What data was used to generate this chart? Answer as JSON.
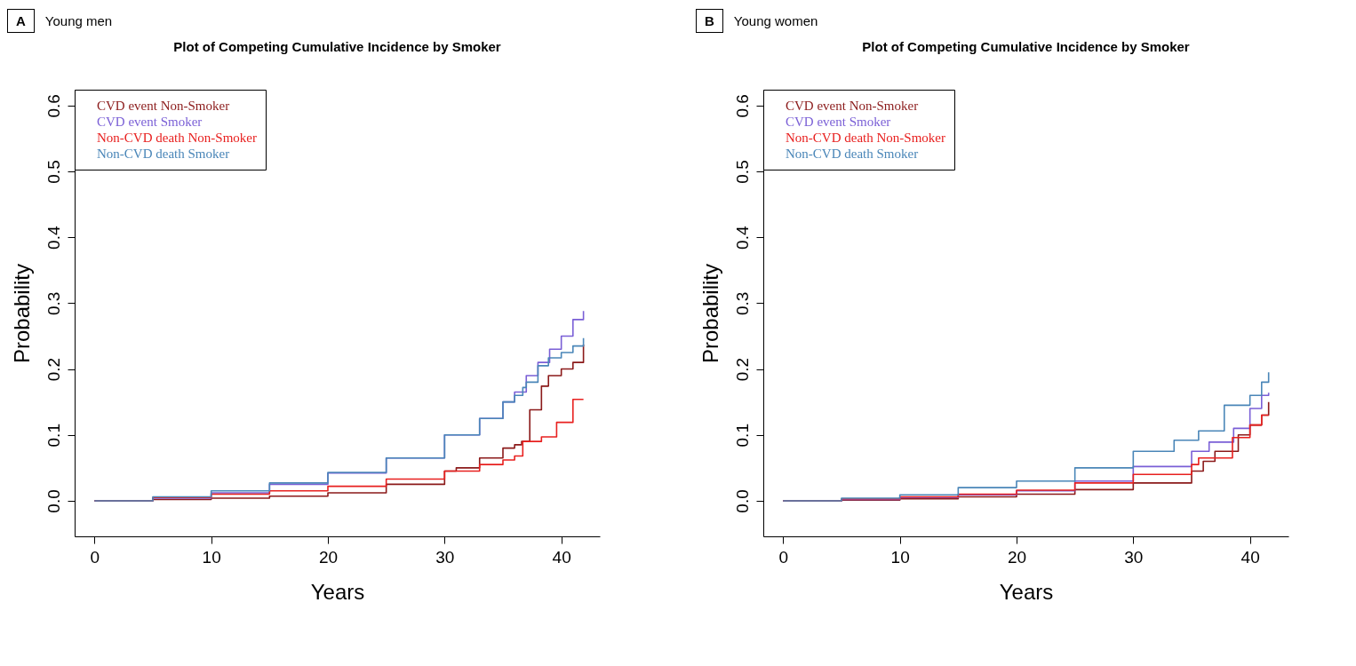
{
  "chart_data": [
    {
      "type": "step",
      "title": "Plot of Competing Cumulative Incidence by Smoker",
      "annotations": [
        "A",
        "Young men"
      ],
      "xlabel": "Years",
      "ylabel": "Probability",
      "xlim": [
        -1.7,
        43.3
      ],
      "ylim": [
        -0.054,
        0.624
      ],
      "xticks": [
        0,
        10,
        20,
        30,
        40
      ],
      "yticks": [
        {
          "value": 0,
          "label": "0.0"
        },
        0.1,
        0.2,
        0.3,
        0.4,
        0.5,
        0.6
      ],
      "grid": false,
      "legend": "top left",
      "series": [
        {
          "name": "CVD event Non-Smoker",
          "color": "#8b1a1a",
          "x": [
            0,
            5,
            10,
            15,
            20,
            25,
            30,
            31,
            33,
            35,
            36,
            36.6,
            37.3,
            38.3,
            38.9,
            40,
            41,
            41.9
          ],
          "values": [
            0,
            0.002,
            0.004,
            0.007,
            0.012,
            0.025,
            0.045,
            0.05,
            0.065,
            0.08,
            0.085,
            0.09,
            0.138,
            0.174,
            0.19,
            0.2,
            0.21,
            0.237
          ]
        },
        {
          "name": "CVD event Smoker",
          "color": "#7a5fd6",
          "x": [
            0,
            5,
            10,
            15,
            20,
            25,
            30,
            33,
            35,
            36,
            37,
            38,
            39,
            40,
            41,
            41.9
          ],
          "values": [
            0,
            0.004,
            0.012,
            0.025,
            0.042,
            0.065,
            0.1,
            0.125,
            0.15,
            0.165,
            0.19,
            0.21,
            0.23,
            0.25,
            0.275,
            0.288
          ]
        },
        {
          "name": "Non-CVD death Non-Smoker",
          "color": "#e8201f",
          "x": [
            0,
            5,
            10,
            15,
            20,
            25,
            30,
            33,
            35,
            36,
            36.7,
            38.3,
            39.6,
            41,
            41.9
          ],
          "values": [
            0,
            0.005,
            0.01,
            0.015,
            0.022,
            0.033,
            0.045,
            0.055,
            0.062,
            0.068,
            0.09,
            0.097,
            0.119,
            0.154,
            0.154
          ]
        },
        {
          "name": "Non-CVD death Smoker",
          "color": "#4a86b8",
          "x": [
            0,
            5,
            10,
            15,
            20,
            25,
            30,
            33,
            35,
            36,
            36.7,
            37,
            38,
            38.9,
            40,
            41,
            41.9
          ],
          "values": [
            0,
            0.006,
            0.015,
            0.027,
            0.043,
            0.065,
            0.1,
            0.125,
            0.15,
            0.16,
            0.172,
            0.18,
            0.205,
            0.217,
            0.225,
            0.235,
            0.247
          ]
        }
      ]
    },
    {
      "type": "step",
      "title": "Plot of Competing Cumulative Incidence by Smoker",
      "annotations": [
        "B",
        "Young women"
      ],
      "xlabel": "Years",
      "ylabel": "Probability",
      "xlim": [
        -1.7,
        43.3
      ],
      "ylim": [
        -0.054,
        0.624
      ],
      "xticks": [
        0,
        10,
        20,
        30,
        40
      ],
      "yticks": [
        {
          "value": 0,
          "label": "0.0"
        },
        0.1,
        0.2,
        0.3,
        0.4,
        0.5,
        0.6
      ],
      "grid": false,
      "legend": "top left",
      "series": [
        {
          "name": "CVD event Non-Smoker",
          "color": "#8b1a1a",
          "x": [
            0,
            5,
            10,
            15,
            20,
            25,
            30,
            35,
            36,
            37,
            39,
            40,
            41,
            41.6
          ],
          "values": [
            0,
            0.001,
            0.003,
            0.006,
            0.01,
            0.017,
            0.027,
            0.045,
            0.06,
            0.075,
            0.1,
            0.115,
            0.13,
            0.15
          ]
        },
        {
          "name": "CVD event Smoker",
          "color": "#7a5fd6",
          "x": [
            0,
            5,
            10,
            15,
            20,
            25,
            30,
            35,
            36.5,
            38.6,
            40,
            41,
            41.6
          ],
          "values": [
            0,
            0.002,
            0.005,
            0.009,
            0.015,
            0.03,
            0.052,
            0.075,
            0.089,
            0.11,
            0.14,
            0.16,
            0.164
          ]
        },
        {
          "name": "Non-CVD death Non-Smoker",
          "color": "#e8201f",
          "x": [
            0,
            5,
            10,
            15,
            20,
            25,
            30,
            35,
            35.6,
            38.5,
            40,
            41,
            41.6
          ],
          "values": [
            0,
            0.003,
            0.006,
            0.01,
            0.016,
            0.027,
            0.04,
            0.055,
            0.065,
            0.096,
            0.115,
            0.13,
            0.13
          ]
        },
        {
          "name": "Non-CVD death Smoker",
          "color": "#4a86b8",
          "x": [
            0,
            5,
            10,
            15,
            20,
            25,
            30,
            33.5,
            35.6,
            37.8,
            40,
            41,
            41.6
          ],
          "values": [
            0,
            0.004,
            0.009,
            0.02,
            0.03,
            0.05,
            0.075,
            0.092,
            0.106,
            0.145,
            0.16,
            0.18,
            0.195
          ]
        }
      ]
    }
  ]
}
